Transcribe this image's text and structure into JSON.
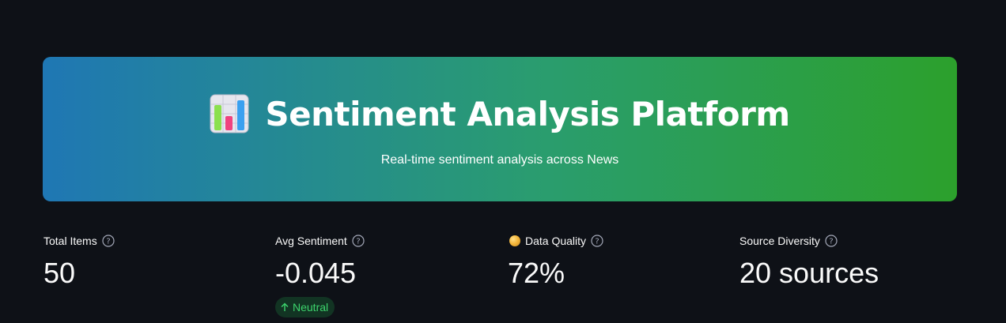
{
  "header": {
    "icon": "bar-chart-emoji-icon",
    "title": "Sentiment Analysis Platform",
    "subtitle": "Real-time sentiment analysis across News"
  },
  "metrics": [
    {
      "label": "Total Items",
      "value": "50",
      "help_icon": "question-circle-icon"
    },
    {
      "label": "Avg Sentiment",
      "value": "-0.045",
      "help_icon": "question-circle-icon",
      "delta": {
        "label": "Neutral",
        "icon": "arrow-up-icon"
      }
    },
    {
      "label": "Data Quality",
      "value": "72%",
      "prefix_icon": "orange-circle-icon",
      "help_icon": "question-circle-icon"
    },
    {
      "label": "Source Diversity",
      "value": "20 sources",
      "help_icon": "question-circle-icon"
    }
  ],
  "colors": {
    "background": "#0e1117",
    "gradient_start": "#1f77b4",
    "gradient_end": "#2ca02c",
    "delta_text": "#3dd56d"
  }
}
